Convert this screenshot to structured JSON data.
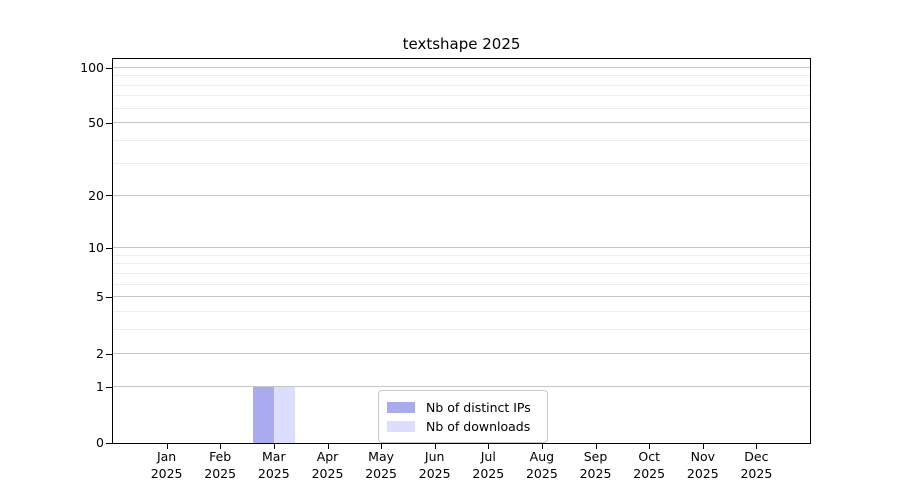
{
  "chart_data": {
    "type": "bar",
    "title": "textshape 2025",
    "year": "2025",
    "months": [
      "Jan",
      "Feb",
      "Mar",
      "Apr",
      "May",
      "Jun",
      "Jul",
      "Aug",
      "Sep",
      "Oct",
      "Nov",
      "Dec"
    ],
    "series": [
      {
        "name": "Nb of distinct IPs",
        "color": "#aaaaee",
        "values": [
          0,
          0,
          1,
          0,
          0,
          0,
          0,
          0,
          0,
          0,
          0,
          0
        ]
      },
      {
        "name": "Nb of downloads",
        "color": "#ddddff",
        "values": [
          0,
          0,
          1,
          0,
          0,
          0,
          0,
          0,
          0,
          0,
          0,
          0
        ]
      }
    ],
    "y_scale": "log10(value+1)",
    "y_ticks": [
      0,
      1,
      2,
      5,
      10,
      20,
      50,
      100
    ],
    "y_minor_ticks": [
      3,
      4,
      6,
      7,
      8,
      9,
      30,
      40,
      60,
      70,
      80,
      90
    ],
    "ylim": [
      0,
      111.5
    ],
    "grid": true,
    "legend_position": "bottom-center",
    "colors": {
      "major_grid": "#c6c6c6",
      "minor_grid": "#ececec",
      "frame": "#000000"
    }
  }
}
